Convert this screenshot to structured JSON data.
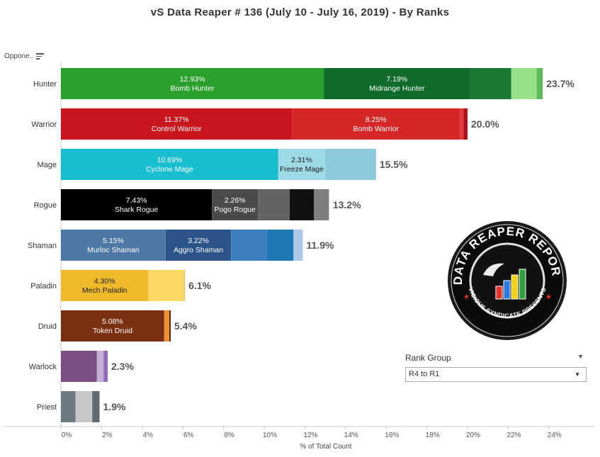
{
  "title": "vS Data Reaper #  136 (July 10 - July 16, 2019) - By Ranks",
  "opponent_header": "Oppone..",
  "rank_group": {
    "label": "Rank Group",
    "selected": "R4 to R1"
  },
  "colors": {
    "hunter": [
      "#2ca02c",
      "#0e6b2a",
      "#1a7a34",
      "#98df8a",
      "#5fb85a"
    ],
    "warrior": [
      "#c9151e",
      "#d62728",
      "#e03a3a",
      "#b0101a"
    ],
    "mage": [
      "#17becf",
      "#9edae5",
      "#8cc9dc"
    ],
    "rogue": [
      "#000000",
      "#4a4a4a",
      "#636363",
      "#111111",
      "#7f7f7f",
      "#bdbdbd"
    ],
    "shaman": [
      "#4e79a7",
      "#2d5488",
      "#3d7fbe",
      "#1f77b4",
      "#aec7e8"
    ],
    "paladin": [
      "#f0b929",
      "#fdd865",
      "#f5c242"
    ],
    "druid": [
      "#7a3011",
      "#f28e2b",
      "#5b230c"
    ],
    "warlock": [
      "#7b4f86",
      "#c5b0d5",
      "#9467bd"
    ],
    "priest": [
      "#6b7a83",
      "#c7c7c7",
      "#5f6b72"
    ]
  },
  "chart_data": {
    "type": "bar",
    "orientation": "horizontal",
    "stacked": true,
    "xlabel": "% of Total Count",
    "xlim": [
      0,
      24.5
    ],
    "xticks": [
      "0%",
      "2%",
      "4%",
      "6%",
      "8%",
      "10%",
      "12%",
      "14%",
      "16%",
      "18%",
      "20%",
      "22%",
      "24%"
    ],
    "grid": false,
    "categories": [
      "Hunter",
      "Warrior",
      "Mage",
      "Rogue",
      "Shaman",
      "Paladin",
      "Druid",
      "Warlock",
      "Priest"
    ],
    "totals": [
      "23.7%",
      "20.0%",
      "15.5%",
      "13.2%",
      "11.9%",
      "6.1%",
      "5.4%",
      "2.3%",
      "1.9%"
    ],
    "bars": [
      {
        "class": "Hunter",
        "segments": [
          {
            "value": 12.93,
            "label": "12.93%",
            "name": "Bomb Hunter"
          },
          {
            "value": 7.19,
            "label": "7.19%",
            "name": "Midrange Hunter"
          },
          {
            "value": 2.03,
            "label": "",
            "name": ""
          },
          {
            "value": 1.25,
            "label": "",
            "name": ""
          },
          {
            "value": 0.3,
            "label": "",
            "name": ""
          }
        ]
      },
      {
        "class": "Warrior",
        "segments": [
          {
            "value": 11.37,
            "label": "11.37%",
            "name": "Control Warrior"
          },
          {
            "value": 8.25,
            "label": "8.25%",
            "name": "Bomb Warrior"
          },
          {
            "value": 0.18,
            "label": "",
            "name": ""
          },
          {
            "value": 0.2,
            "label": "",
            "name": ""
          }
        ]
      },
      {
        "class": "Mage",
        "segments": [
          {
            "value": 10.69,
            "label": "10.69%",
            "name": "Cyclone Mage"
          },
          {
            "value": 2.31,
            "label": "2.31%",
            "name": "Freeze Mage"
          },
          {
            "value": 2.5,
            "label": "",
            "name": ""
          }
        ]
      },
      {
        "class": "Rogue",
        "segments": [
          {
            "value": 7.43,
            "label": "7.43%",
            "name": "Shark Rogue"
          },
          {
            "value": 2.26,
            "label": "2.26%",
            "name": "Pogo Rogue"
          },
          {
            "value": 1.56,
            "label": "",
            "name": ""
          },
          {
            "value": 1.2,
            "label": "",
            "name": ""
          },
          {
            "value": 0.72,
            "label": "",
            "name": ""
          },
          {
            "value": 0.03,
            "label": "",
            "name": ""
          }
        ]
      },
      {
        "class": "Shaman",
        "segments": [
          {
            "value": 5.15,
            "label": "5.15%",
            "name": "Murloc Shaman"
          },
          {
            "value": 3.22,
            "label": "3.22%",
            "name": "Aggro Shaman"
          },
          {
            "value": 1.76,
            "label": "",
            "name": ""
          },
          {
            "value": 1.31,
            "label": "",
            "name": ""
          },
          {
            "value": 0.46,
            "label": "",
            "name": ""
          }
        ]
      },
      {
        "class": "Paladin",
        "segments": [
          {
            "value": 4.3,
            "label": "4.30%",
            "name": "Mech Paladin"
          },
          {
            "value": 1.75,
            "label": "",
            "name": ""
          },
          {
            "value": 0.05,
            "label": "",
            "name": ""
          }
        ]
      },
      {
        "class": "Druid",
        "segments": [
          {
            "value": 5.08,
            "label": "5.08%",
            "name": "Token Druid"
          },
          {
            "value": 0.25,
            "label": "",
            "name": ""
          },
          {
            "value": 0.07,
            "label": "",
            "name": ""
          }
        ]
      },
      {
        "class": "Warlock",
        "segments": [
          {
            "value": 1.77,
            "label": "",
            "name": ""
          },
          {
            "value": 0.33,
            "label": "",
            "name": ""
          },
          {
            "value": 0.2,
            "label": "",
            "name": ""
          }
        ]
      },
      {
        "class": "Priest",
        "segments": [
          {
            "value": 0.72,
            "label": "",
            "name": ""
          },
          {
            "value": 0.82,
            "label": "",
            "name": ""
          },
          {
            "value": 0.36,
            "label": "",
            "name": ""
          }
        ]
      }
    ]
  },
  "logo": {
    "top_text": "DATA REAPER REPORT",
    "bottom_text": "VICIOUS SYNDICATE PRESENTS",
    "bar_colors": [
      "#e8322c",
      "#2a7ae2",
      "#f5d10d",
      "#2fa23c"
    ]
  }
}
